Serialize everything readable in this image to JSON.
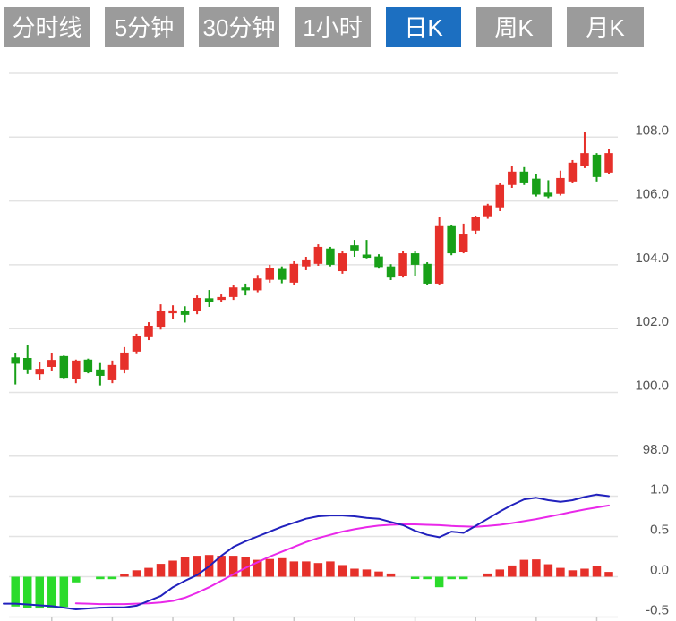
{
  "toolbar": {
    "tabs": [
      {
        "label": "分时线",
        "selected": false
      },
      {
        "label": "5分钟",
        "selected": false
      },
      {
        "label": "30分钟",
        "selected": false
      },
      {
        "label": "1小时",
        "selected": false
      },
      {
        "label": "日K",
        "selected": true
      },
      {
        "label": "周K",
        "selected": false
      },
      {
        "label": "月K",
        "selected": false
      }
    ]
  },
  "colors": {
    "up": "#e6302a",
    "down": "#18a018",
    "macd_up": "#e6302a",
    "macd_down": "#2bdb2b",
    "dif_line": "#2121bd",
    "dea_line": "#e928e9",
    "grid": "#e3e3e3",
    "axis_tick": "#c8c8c8",
    "axis_text": "#555555",
    "tab_bg": "#9b9b9b",
    "tab_selected_bg": "#1c6fc1",
    "tab_text": "#ffffff"
  },
  "chart_data": {
    "type": "candlestick+macd",
    "title": "",
    "xlabel": "",
    "ylabel": "",
    "grid": true,
    "legend": "none",
    "price_panel": {
      "ylim": [
        98,
        110
      ],
      "gridline_values": [
        110,
        108,
        106,
        104,
        102,
        100,
        98
      ],
      "ticks": [
        {
          "value": 108,
          "label": "108.0"
        },
        {
          "value": 106,
          "label": "106.0"
        },
        {
          "value": 104,
          "label": "104.0"
        },
        {
          "value": 102,
          "label": "102.0"
        },
        {
          "value": 100,
          "label": "100.0"
        },
        {
          "value": 98,
          "label": "98.0"
        }
      ],
      "candles_ohlc_format": "[open, high, low, close] ; close>=open drawn red (up), close<open drawn green (down)",
      "candles": [
        [
          101.1,
          101.22,
          100.25,
          100.9
        ],
        [
          101.08,
          101.5,
          100.58,
          100.72
        ],
        [
          100.57,
          100.94,
          100.38,
          100.74
        ],
        [
          100.8,
          101.22,
          100.66,
          101.02
        ],
        [
          101.14,
          101.16,
          100.44,
          100.46
        ],
        [
          100.41,
          101.03,
          100.29,
          101.0
        ],
        [
          101.03,
          101.06,
          100.6,
          100.63
        ],
        [
          100.72,
          100.92,
          100.22,
          100.52
        ],
        [
          100.38,
          101.0,
          100.29,
          100.86
        ],
        [
          100.72,
          101.42,
          100.6,
          101.25
        ],
        [
          101.28,
          101.84,
          101.2,
          101.76
        ],
        [
          101.73,
          102.2,
          101.64,
          102.09
        ],
        [
          102.06,
          102.76,
          101.97,
          102.56
        ],
        [
          102.48,
          102.73,
          102.31,
          102.57
        ],
        [
          102.54,
          102.7,
          102.19,
          102.43
        ],
        [
          102.54,
          103.04,
          102.45,
          102.96
        ],
        [
          102.95,
          103.21,
          102.68,
          102.84
        ],
        [
          102.9,
          103.07,
          102.82,
          102.99
        ],
        [
          102.99,
          103.38,
          102.9,
          103.29
        ],
        [
          103.29,
          103.41,
          103.04,
          103.2
        ],
        [
          103.2,
          103.68,
          103.14,
          103.57
        ],
        [
          103.53,
          104.0,
          103.44,
          103.91
        ],
        [
          103.87,
          103.95,
          103.42,
          103.53
        ],
        [
          103.44,
          104.11,
          103.38,
          104.03
        ],
        [
          103.95,
          104.25,
          103.83,
          104.14
        ],
        [
          104.03,
          104.64,
          103.97,
          104.56
        ],
        [
          104.51,
          104.56,
          103.95,
          104.0
        ],
        [
          103.8,
          104.42,
          103.72,
          104.36
        ],
        [
          104.61,
          104.78,
          104.25,
          104.45
        ],
        [
          104.32,
          104.78,
          104.2,
          104.22
        ],
        [
          104.26,
          104.33,
          103.88,
          103.93
        ],
        [
          103.95,
          104.02,
          103.52,
          103.6
        ],
        [
          103.66,
          104.42,
          103.6,
          104.36
        ],
        [
          104.36,
          104.42,
          103.66,
          104.0
        ],
        [
          104.03,
          104.08,
          103.38,
          103.41
        ],
        [
          103.41,
          105.49,
          103.38,
          105.21
        ],
        [
          105.21,
          105.26,
          104.3,
          104.36
        ],
        [
          104.39,
          105.29,
          104.36,
          104.95
        ],
        [
          105.07,
          105.54,
          104.95,
          105.49
        ],
        [
          105.52,
          105.91,
          105.44,
          105.86
        ],
        [
          105.8,
          106.56,
          105.68,
          106.5
        ],
        [
          106.5,
          107.11,
          106.41,
          106.92
        ],
        [
          106.92,
          107.06,
          106.5,
          106.58
        ],
        [
          106.7,
          106.84,
          106.14,
          106.2
        ],
        [
          106.26,
          106.65,
          106.09,
          106.14
        ],
        [
          106.22,
          106.95,
          106.17,
          106.72
        ],
        [
          106.61,
          107.28,
          106.56,
          107.2
        ],
        [
          107.11,
          108.15,
          107.03,
          107.5
        ],
        [
          107.45,
          107.5,
          106.61,
          106.75
        ],
        [
          106.89,
          107.64,
          106.84,
          107.5
        ]
      ]
    },
    "macd_panel": {
      "ylim": [
        -0.5,
        1.0
      ],
      "gridline_values": [
        1.0,
        0.5,
        0.0
      ],
      "ticks": [
        {
          "value": 1.0,
          "label": "1.0"
        },
        {
          "value": 0.5,
          "label": "0.5"
        },
        {
          "value": 0.0,
          "label": "0.0"
        },
        {
          "value": -0.5,
          "label": "-0.5"
        }
      ],
      "histogram": [
        -0.37,
        -0.385,
        -0.395,
        -0.385,
        -0.375,
        -0.07,
        0,
        -0.03,
        -0.03,
        0.02,
        0.08,
        0.11,
        0.16,
        0.2,
        0.25,
        0.26,
        0.27,
        0.26,
        0.26,
        0.24,
        0.21,
        0.22,
        0.23,
        0.19,
        0.19,
        0.17,
        0.19,
        0.145,
        0.1,
        0.09,
        0.065,
        0.04,
        0,
        -0.02,
        -0.03,
        -0.13,
        -0.03,
        -0.03,
        0,
        0.04,
        0.09,
        0.14,
        0.21,
        0.215,
        0.155,
        0.11,
        0.08,
        0.1,
        0.13,
        0.06
      ],
      "dif": [
        -0.335,
        -0.345,
        -0.355,
        -0.365,
        -0.385,
        -0.405,
        -0.395,
        -0.385,
        -0.38,
        -0.38,
        -0.36,
        -0.3,
        -0.24,
        -0.13,
        -0.05,
        0.02,
        0.13,
        0.26,
        0.37,
        0.44,
        0.5,
        0.56,
        0.62,
        0.67,
        0.72,
        0.75,
        0.76,
        0.76,
        0.75,
        0.73,
        0.72,
        0.68,
        0.64,
        0.57,
        0.52,
        0.49,
        0.56,
        0.545,
        0.63,
        0.72,
        0.81,
        0.89,
        0.96,
        0.98,
        0.95,
        0.93,
        0.95,
        0.99,
        1.02,
        1.0
      ],
      "dea": [
        null,
        null,
        null,
        null,
        null,
        -0.33,
        -0.335,
        -0.34,
        -0.34,
        -0.34,
        -0.335,
        -0.33,
        -0.32,
        -0.3,
        -0.26,
        -0.2,
        -0.13,
        -0.05,
        0.03,
        0.11,
        0.18,
        0.25,
        0.31,
        0.37,
        0.43,
        0.48,
        0.52,
        0.56,
        0.59,
        0.615,
        0.635,
        0.645,
        0.65,
        0.65,
        0.645,
        0.64,
        0.63,
        0.625,
        0.62,
        0.63,
        0.645,
        0.665,
        0.69,
        0.715,
        0.745,
        0.775,
        0.805,
        0.835,
        0.86,
        0.885
      ]
    },
    "x_axis": {
      "tick_candle_indices": [
        3,
        8,
        13,
        18,
        23,
        28,
        33,
        38,
        43,
        48
      ]
    }
  }
}
